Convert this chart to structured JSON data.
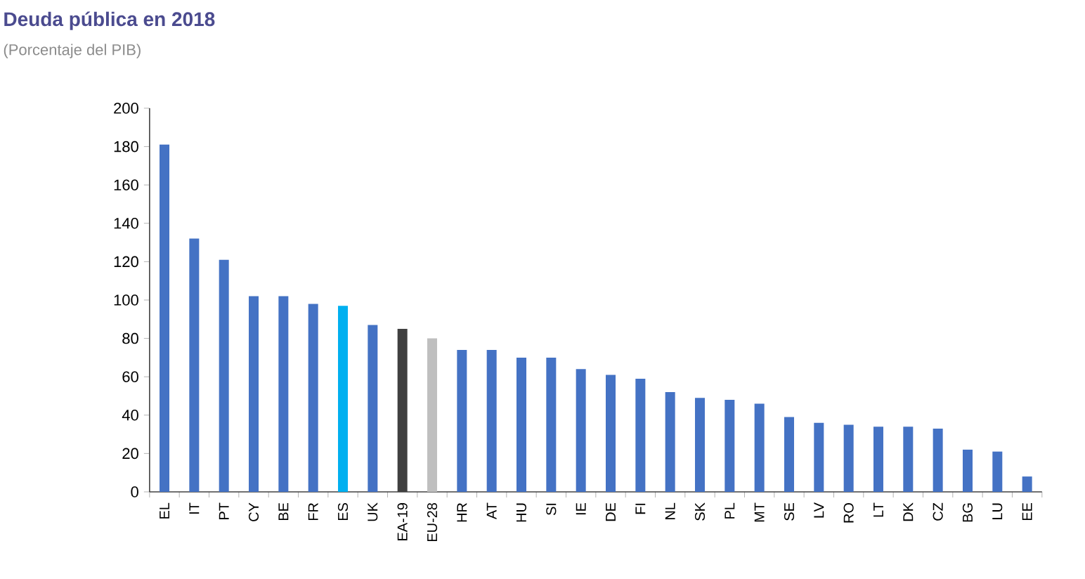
{
  "chart_data": {
    "type": "bar",
    "title": "Deuda pública en 2018",
    "subtitle": "(Porcentaje del PIB)",
    "categories": [
      "EL",
      "IT",
      "PT",
      "CY",
      "BE",
      "FR",
      "ES",
      "UK",
      "EA-19",
      "EU-28",
      "HR",
      "AT",
      "HU",
      "SI",
      "IE",
      "DE",
      "FI",
      "NL",
      "SK",
      "PL",
      "MT",
      "SE",
      "LV",
      "RO",
      "LT",
      "DK",
      "CZ",
      "BG",
      "LU",
      "EE"
    ],
    "values": [
      181,
      132,
      121,
      102,
      102,
      98,
      97,
      87,
      85,
      80,
      74,
      74,
      70,
      70,
      64,
      61,
      59,
      52,
      49,
      48,
      46,
      39,
      36,
      35,
      34,
      34,
      33,
      22,
      21,
      8
    ],
    "colors": [
      "#4472c4",
      "#4472c4",
      "#4472c4",
      "#4472c4",
      "#4472c4",
      "#4472c4",
      "#00b0f0",
      "#4472c4",
      "#404040",
      "#bfbfbf",
      "#4472c4",
      "#4472c4",
      "#4472c4",
      "#4472c4",
      "#4472c4",
      "#4472c4",
      "#4472c4",
      "#4472c4",
      "#4472c4",
      "#4472c4",
      "#4472c4",
      "#4472c4",
      "#4472c4",
      "#4472c4",
      "#4472c4",
      "#4472c4",
      "#4472c4",
      "#4472c4",
      "#4472c4",
      "#4472c4"
    ],
    "ylim": [
      0,
      200
    ],
    "yticks": [
      0,
      20,
      40,
      60,
      80,
      100,
      120,
      140,
      160,
      180,
      200
    ]
  }
}
